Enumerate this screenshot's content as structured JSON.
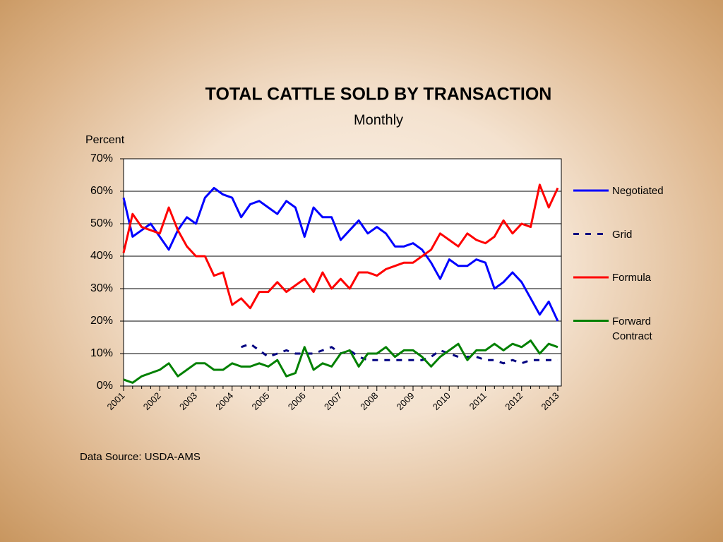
{
  "chart_data": {
    "type": "line",
    "title": "TOTAL  CATTLE  SOLD  BY  TRANSACTION",
    "subtitle": "Monthly",
    "y_label": "Percent",
    "source": "Data Source: USDA-AMS",
    "categories": [
      "2001",
      null,
      null,
      null,
      "2002",
      null,
      null,
      null,
      "2003",
      null,
      null,
      null,
      "2004",
      null,
      null,
      null,
      "2005",
      null,
      null,
      null,
      "2006",
      null,
      null,
      null,
      "2007",
      null,
      null,
      null,
      "2008",
      null,
      null,
      null,
      "2009",
      null,
      null,
      null,
      "2010",
      null,
      null,
      null,
      "2011",
      null,
      null,
      null,
      "2012",
      null,
      null,
      null,
      "2013"
    ],
    "ylim": [
      0,
      70
    ],
    "yticks": [
      {
        "value": 0,
        "label": "0%"
      },
      {
        "value": 10,
        "label": "10%"
      },
      {
        "value": 20,
        "label": "20%"
      },
      {
        "value": 30,
        "label": "30%"
      },
      {
        "value": 40,
        "label": "40%"
      },
      {
        "value": 50,
        "label": "50%"
      },
      {
        "value": 60,
        "label": "60%"
      },
      {
        "value": 70,
        "label": "70%"
      }
    ],
    "grid": true,
    "legend": "right",
    "series": [
      {
        "name": "Negotiated",
        "color": "#0000ff",
        "dash": false,
        "values": [
          58,
          46,
          48,
          50,
          46,
          42,
          48,
          52,
          50,
          58,
          61,
          59,
          58,
          52,
          56,
          57,
          55,
          53,
          57,
          55,
          46,
          55,
          52,
          52,
          45,
          48,
          51,
          47,
          49,
          47,
          43,
          43,
          44,
          42,
          38,
          33,
          39,
          37,
          37,
          39,
          38,
          30,
          32,
          35,
          32,
          27,
          22,
          26,
          20
        ]
      },
      {
        "name": "Grid",
        "color": "#000080",
        "dash": true,
        "values": [
          null,
          null,
          null,
          null,
          null,
          null,
          null,
          null,
          null,
          null,
          null,
          null,
          null,
          12,
          13,
          11,
          9,
          10,
          11,
          10,
          10,
          10,
          11,
          12,
          10,
          11,
          9,
          8,
          8,
          8,
          8,
          8,
          8,
          8,
          9,
          11,
          10,
          9,
          9,
          9,
          8,
          8,
          7,
          8,
          7,
          8,
          8,
          8,
          8
        ]
      },
      {
        "name": "Formula",
        "color": "#ff0000",
        "dash": false,
        "values": [
          41,
          53,
          49,
          48,
          47,
          55,
          48,
          43,
          40,
          40,
          34,
          35,
          25,
          27,
          24,
          29,
          29,
          32,
          29,
          31,
          33,
          29,
          35,
          30,
          33,
          30,
          35,
          35,
          34,
          36,
          37,
          38,
          38,
          40,
          42,
          47,
          45,
          43,
          47,
          45,
          44,
          46,
          51,
          47,
          50,
          49,
          62,
          55,
          61
        ]
      },
      {
        "name": "Forward Contract",
        "color": "#008000",
        "dash": false,
        "values": [
          2,
          1,
          3,
          4,
          5,
          7,
          3,
          5,
          7,
          7,
          5,
          5,
          7,
          6,
          6,
          7,
          6,
          8,
          3,
          4,
          12,
          5,
          7,
          6,
          10,
          11,
          6,
          10,
          10,
          12,
          9,
          11,
          11,
          9,
          6,
          9,
          11,
          13,
          8,
          11,
          11,
          13,
          11,
          13,
          12,
          14,
          10,
          13,
          12
        ]
      }
    ]
  }
}
